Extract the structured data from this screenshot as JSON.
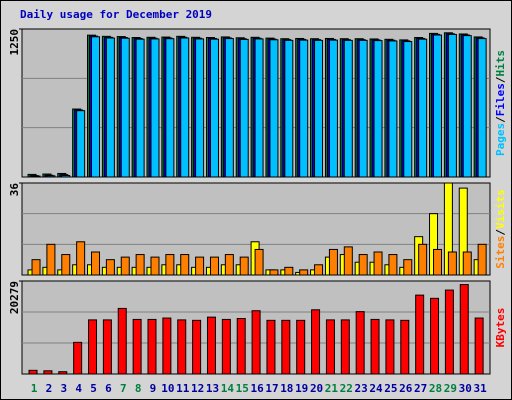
{
  "chart_data": [
    {
      "type": "bar",
      "title": "Daily usage for December 2019",
      "ylim": [
        0,
        1250
      ],
      "yticks": [
        1250
      ],
      "legend_separator": "/",
      "series": [
        {
          "name": "Hits",
          "color": "#008040",
          "values": [
            22,
            25,
            30,
            574,
            1198,
            1188,
            1186,
            1178,
            1180,
            1182,
            1188,
            1180,
            1178,
            1183,
            1176,
            1180,
            1173,
            1168,
            1170,
            1168,
            1170,
            1168,
            1168,
            1166,
            1163,
            1158,
            1178,
            1213,
            1218,
            1208,
            1183
          ]
        },
        {
          "name": "Files",
          "color": "#0000ff",
          "values": [
            12,
            15,
            20,
            566,
            1190,
            1180,
            1178,
            1170,
            1172,
            1174,
            1180,
            1172,
            1170,
            1175,
            1168,
            1172,
            1165,
            1160,
            1162,
            1160,
            1162,
            1160,
            1160,
            1158,
            1155,
            1150,
            1170,
            1205,
            1210,
            1200,
            1175
          ]
        },
        {
          "name": "Pages",
          "color": "#00c0ff",
          "values": [
            8,
            10,
            12,
            560,
            1184,
            1174,
            1172,
            1164,
            1166,
            1168,
            1174,
            1166,
            1164,
            1169,
            1162,
            1166,
            1159,
            1154,
            1156,
            1154,
            1156,
            1154,
            1154,
            1152,
            1149,
            1144,
            1164,
            1199,
            1204,
            1194,
            1169
          ]
        }
      ]
    },
    {
      "type": "bar",
      "ylim": [
        0,
        36
      ],
      "yticks": [
        36
      ],
      "legend_separator": "/",
      "series": [
        {
          "name": "Visits",
          "color": "#ffff00",
          "values": [
            2,
            3,
            2,
            4,
            4,
            3,
            3,
            3,
            3,
            4,
            4,
            3,
            3,
            4,
            4,
            13,
            2,
            2,
            1,
            2,
            7,
            8,
            5,
            5,
            4,
            3,
            15,
            24,
            36,
            34,
            6
          ]
        },
        {
          "name": "Sites",
          "color": "#ff8000",
          "values": [
            6,
            12,
            8,
            13,
            9,
            6,
            7,
            8,
            7,
            8,
            8,
            7,
            7,
            8,
            7,
            10,
            2,
            3,
            2,
            4,
            10,
            11,
            8,
            9,
            8,
            6,
            12,
            10,
            9,
            9,
            12
          ]
        }
      ]
    },
    {
      "type": "bar",
      "ylim": [
        0,
        20279
      ],
      "yticks": [
        20279
      ],
      "categories": [
        "1",
        "2",
        "3",
        "4",
        "5",
        "6",
        "7",
        "8",
        "9",
        "10",
        "11",
        "12",
        "13",
        "14",
        "15",
        "16",
        "17",
        "18",
        "19",
        "20",
        "21",
        "22",
        "23",
        "24",
        "25",
        "26",
        "27",
        "28",
        "29",
        "30",
        "31"
      ],
      "category_colors": [
        "#008040",
        "#0000a0",
        "#0000a0",
        "#0000a0",
        "#0000a0",
        "#0000a0",
        "#008040",
        "#008040",
        "#0000a0",
        "#0000a0",
        "#0000a0",
        "#0000a0",
        "#0000a0",
        "#008040",
        "#008040",
        "#0000a0",
        "#0000a0",
        "#0000a0",
        "#0000a0",
        "#0000a0",
        "#008040",
        "#008040",
        "#0000a0",
        "#0000a0",
        "#0000a0",
        "#0000a0",
        "#0000a0",
        "#008040",
        "#008040",
        "#0000a0",
        "#0000a0"
      ],
      "series": [
        {
          "name": "KBytes",
          "color": "#ff0000",
          "values": [
            800,
            700,
            500,
            6900,
            11800,
            11800,
            14300,
            11900,
            11900,
            12200,
            11800,
            11700,
            12400,
            11900,
            12100,
            13800,
            11700,
            11700,
            11700,
            14000,
            11800,
            11800,
            13600,
            11900,
            11800,
            11700,
            17200,
            16500,
            18300,
            19500,
            12200
          ]
        }
      ]
    }
  ]
}
